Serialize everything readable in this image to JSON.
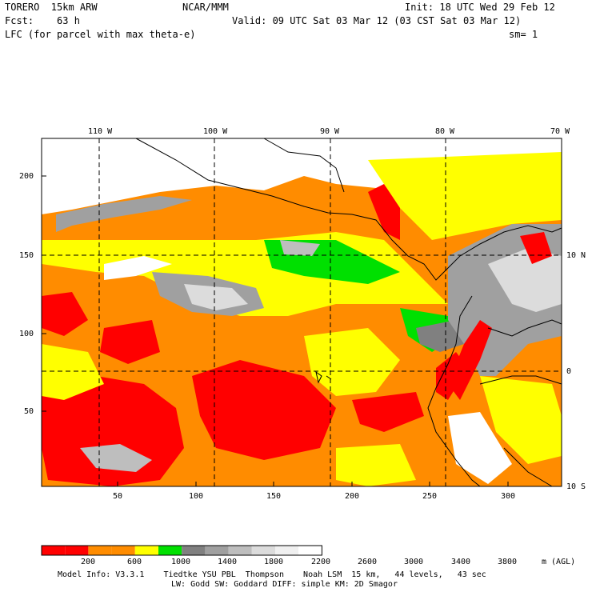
{
  "header": {
    "model": "TORERO  15km ARW",
    "org": "NCAR/MMM",
    "init": "Init: 18 UTC Wed 29 Feb 12",
    "fcst": "Fcst:    63 h",
    "valid": "Valid: 09 UTC Sat 03 Mar 12 (03 CST Sat 03 Mar 12)",
    "field": "LFC (for parcel with max theta-e)",
    "smoothing": "sm= 1"
  },
  "axes": {
    "top_lon_labels": [
      "110 W",
      "100 W",
      "90 W",
      "80 W",
      "70 W"
    ],
    "right_lat_labels": [
      "10 N",
      "0",
      "10 S"
    ],
    "left_y_ticks": [
      "200",
      "150",
      "100",
      "50"
    ],
    "bottom_x_ticks": [
      "50",
      "100",
      "150",
      "200",
      "250",
      "300"
    ]
  },
  "colorbar": {
    "unit": "m (AGL)",
    "labels": [
      "200",
      "600",
      "1000",
      "1400",
      "1800",
      "2200",
      "2600",
      "3000",
      "3400",
      "3800"
    ],
    "colors": [
      "#ff0000",
      "#ff0000",
      "#ff8c00",
      "#ff8c00",
      "#ffff00",
      "#00e000",
      "#808080",
      "#a0a0a0",
      "#bebebe",
      "#dcdcdc",
      "#f0f0f0",
      "#ffffff"
    ]
  },
  "footer": {
    "line1": "Model Info: V3.3.1    Tiedtke YSU PBL  Thompson    Noah LSM  15 km,   44 levels,   43 sec",
    "line2": "LW: Godd SW: Goddard DIFF: simple KM: 2D Smagor"
  }
}
